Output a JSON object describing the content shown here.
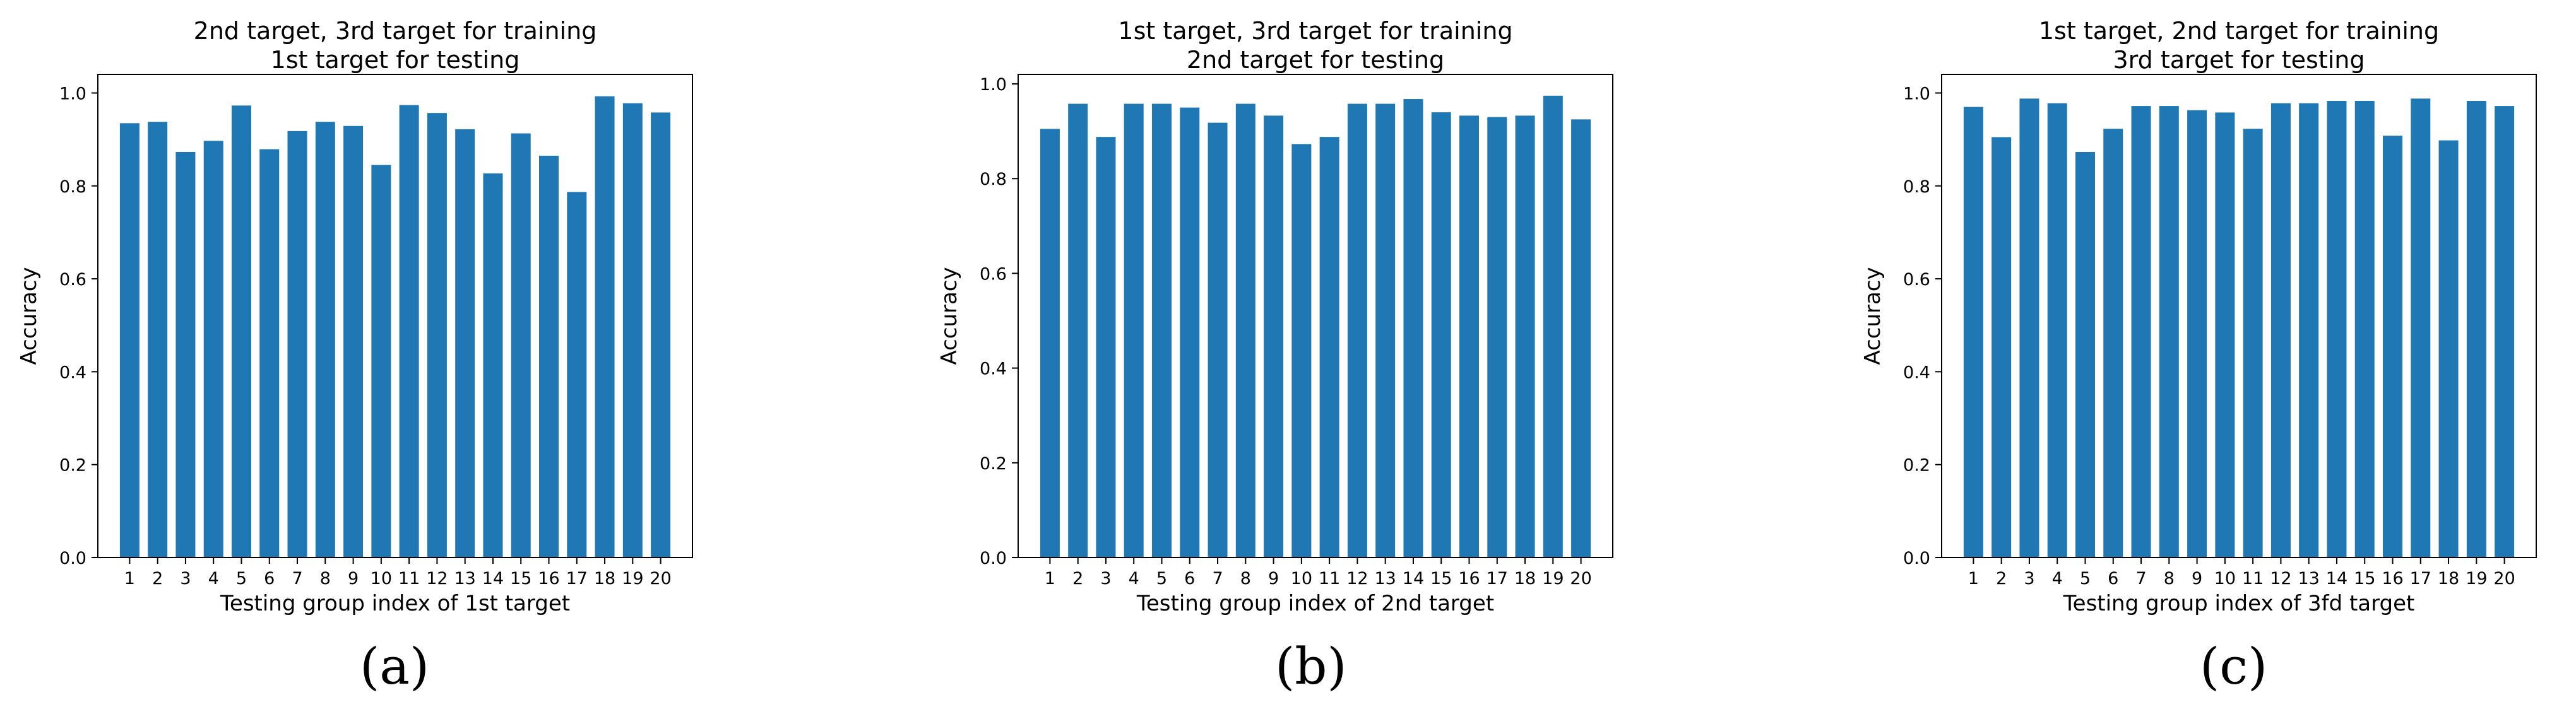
{
  "chart_data": [
    {
      "type": "bar",
      "panel_label": "(a)",
      "title_lines": [
        "2nd target, 3rd target  for training",
        "1st target  for testing"
      ],
      "xlabel": "Testing group index of 1st target",
      "ylabel": "Accuracy",
      "ylim": [
        0,
        1.04
      ],
      "yticks": [
        0.0,
        0.2,
        0.4,
        0.6,
        0.8,
        1.0
      ],
      "ytick_labels": [
        "0.0",
        "0.2",
        "0.4",
        "0.6",
        "0.8",
        "1.0"
      ],
      "bar_color": "#1f77b4",
      "categories": [
        "1",
        "2",
        "3",
        "4",
        "5",
        "6",
        "7",
        "8",
        "9",
        "10",
        "11",
        "12",
        "13",
        "14",
        "15",
        "16",
        "17",
        "18",
        "19",
        "20"
      ],
      "values": [
        0.935,
        0.938,
        0.873,
        0.897,
        0.973,
        0.879,
        0.918,
        0.938,
        0.929,
        0.845,
        0.974,
        0.957,
        0.922,
        0.827,
        0.913,
        0.865,
        0.787,
        0.993,
        0.978,
        0.958
      ]
    },
    {
      "type": "bar",
      "panel_label": "(b)",
      "title_lines": [
        "1st target, 3rd target  for training",
        "2nd target  for testing"
      ],
      "xlabel": "Testing group index of 2nd target",
      "ylabel": "Accuracy",
      "ylim": [
        0,
        1.02
      ],
      "yticks": [
        0.0,
        0.2,
        0.4,
        0.6,
        0.8,
        1.0
      ],
      "ytick_labels": [
        "0.0",
        "0.2",
        "0.4",
        "0.6",
        "0.8",
        "1.0"
      ],
      "bar_color": "#1f77b4",
      "categories": [
        "1",
        "2",
        "3",
        "4",
        "5",
        "6",
        "7",
        "8",
        "9",
        "10",
        "11",
        "12",
        "13",
        "14",
        "15",
        "16",
        "17",
        "18",
        "19",
        "20"
      ],
      "values": [
        0.905,
        0.958,
        0.888,
        0.958,
        0.958,
        0.95,
        0.918,
        0.958,
        0.933,
        0.873,
        0.888,
        0.958,
        0.958,
        0.968,
        0.94,
        0.933,
        0.93,
        0.933,
        0.975,
        0.925
      ]
    },
    {
      "type": "bar",
      "panel_label": "(c)",
      "title_lines": [
        "1st target, 2nd target  for training",
        "3rd target  for testing"
      ],
      "xlabel": "Testing group index of 3fd target",
      "ylabel": "Accuracy",
      "ylim": [
        0,
        1.04
      ],
      "yticks": [
        0.0,
        0.2,
        0.4,
        0.6,
        0.8,
        1.0
      ],
      "ytick_labels": [
        "0.0",
        "0.2",
        "0.4",
        "0.6",
        "0.8",
        "1.0"
      ],
      "bar_color": "#1f77b4",
      "categories": [
        "1",
        "2",
        "3",
        "4",
        "5",
        "6",
        "7",
        "8",
        "9",
        "10",
        "11",
        "12",
        "13",
        "14",
        "15",
        "16",
        "17",
        "18",
        "19",
        "20"
      ],
      "values": [
        0.97,
        0.905,
        0.988,
        0.978,
        0.873,
        0.923,
        0.972,
        0.972,
        0.963,
        0.958,
        0.923,
        0.978,
        0.978,
        0.983,
        0.983,
        0.908,
        0.988,
        0.898,
        0.983,
        0.972
      ]
    }
  ]
}
